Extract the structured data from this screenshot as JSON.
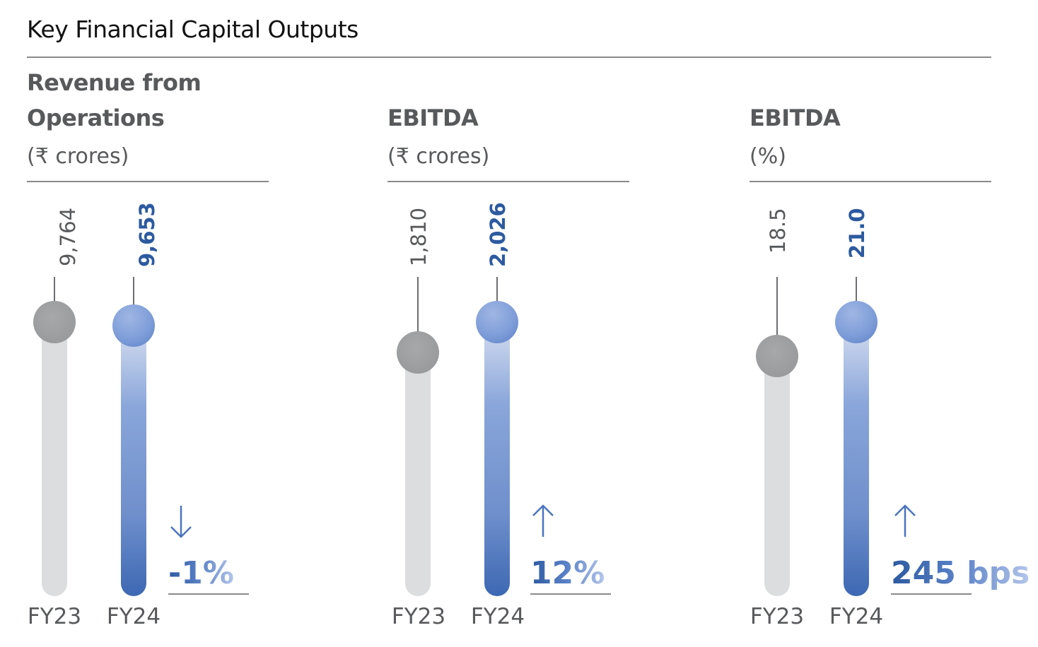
{
  "title": "Key Financial Capital Outputs",
  "colors": {
    "fy23": "#a7a8aa",
    "fy24": "#6f8fcc",
    "accent": "#2c5aa0",
    "text": "#58595b"
  },
  "panels": [
    {
      "heading": "Revenue from Operations",
      "unit": "(₹ crores)",
      "fy23_value": "9,764",
      "fy24_value": "9,653",
      "direction": "down",
      "change": "-1%",
      "fy23_label": "FY23",
      "fy24_label": "FY24"
    },
    {
      "heading": "EBITDA",
      "unit": "(₹ crores)",
      "fy23_value": "1,810",
      "fy24_value": "2,026",
      "direction": "up",
      "change": "12%",
      "fy23_label": "FY23",
      "fy24_label": "FY24"
    },
    {
      "heading": "EBITDA",
      "unit": "(%)",
      "fy23_value": "18.5",
      "fy24_value": "21.0",
      "direction": "up",
      "change": "245 bps",
      "fy23_label": "FY23",
      "fy24_label": "FY24"
    }
  ],
  "chart_data": [
    {
      "type": "bar",
      "title": "Revenue from Operations",
      "ylabel": "(₹ crores)",
      "categories": [
        "FY23",
        "FY24"
      ],
      "values": [
        9764,
        9653
      ],
      "change": "-1%"
    },
    {
      "type": "bar",
      "title": "EBITDA",
      "ylabel": "(₹ crores)",
      "categories": [
        "FY23",
        "FY24"
      ],
      "values": [
        1810,
        2026
      ],
      "change": "12%"
    },
    {
      "type": "bar",
      "title": "EBITDA",
      "ylabel": "(%)",
      "categories": [
        "FY23",
        "FY24"
      ],
      "values": [
        18.5,
        21.0
      ],
      "change": "245 bps"
    }
  ]
}
